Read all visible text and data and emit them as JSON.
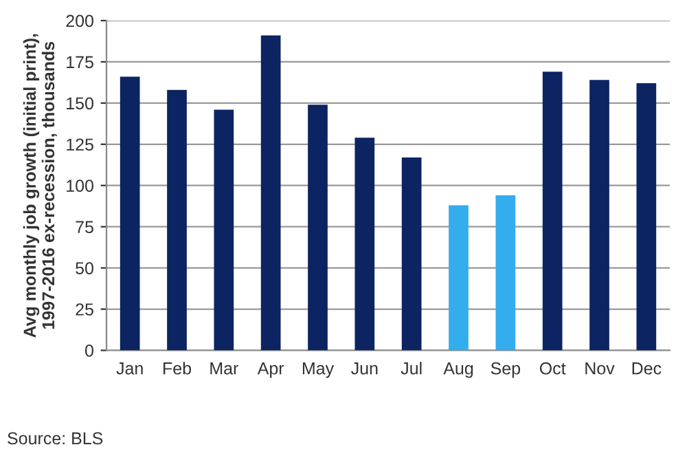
{
  "chart_data": {
    "type": "bar",
    "ylabel": "Avg monthly job growth (initial print),\n1997-2016 ex-recession, thousands",
    "categories": [
      "Jan",
      "Feb",
      "Mar",
      "Apr",
      "May",
      "Jun",
      "Jul",
      "Aug",
      "Sep",
      "Oct",
      "Nov",
      "Dec"
    ],
    "values": [
      166,
      158,
      146,
      191,
      149,
      129,
      117,
      88,
      94,
      169,
      164,
      162
    ],
    "colors": [
      "#0c2461",
      "#0c2461",
      "#0c2461",
      "#0c2461",
      "#0c2461",
      "#0c2461",
      "#0c2461",
      "#33adee",
      "#33adee",
      "#0c2461",
      "#0c2461",
      "#0c2461"
    ],
    "ylim": [
      0,
      200
    ],
    "yticks": [
      0,
      25,
      50,
      75,
      100,
      125,
      150,
      175,
      200
    ],
    "grid": "y",
    "legend": false,
    "annotations": [
      "Source: BLS"
    ]
  }
}
